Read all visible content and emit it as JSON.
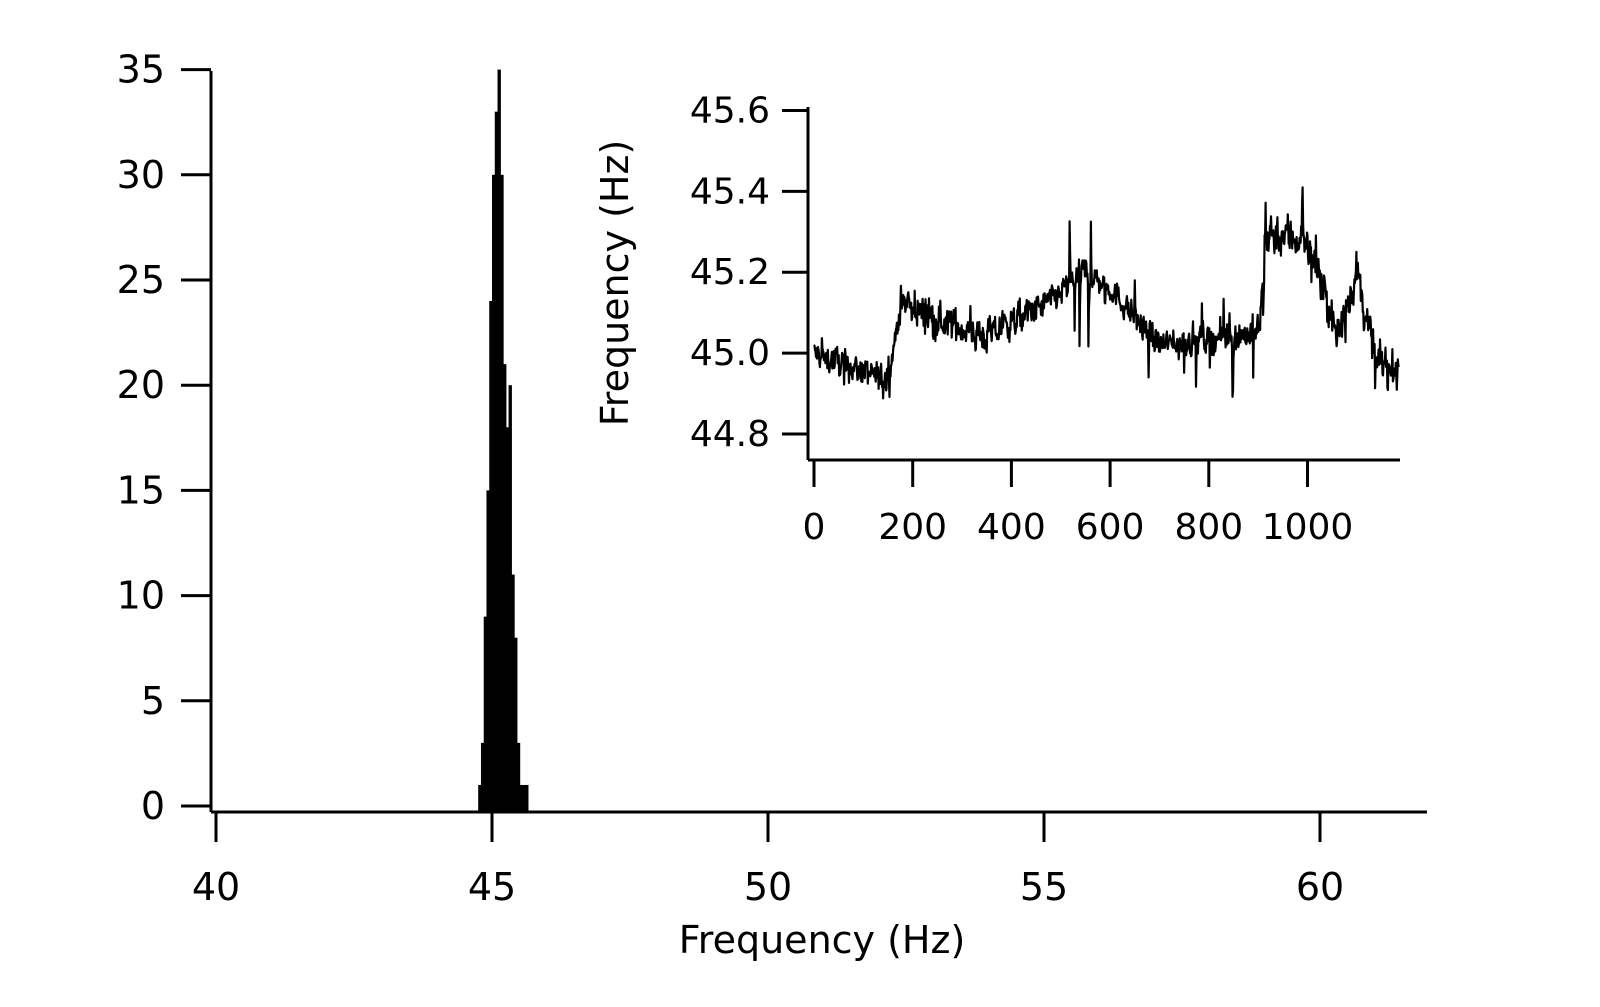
{
  "chart_data": [
    {
      "type": "bar",
      "title": "",
      "xlabel": "Frequency (Hz)",
      "ylabel": "",
      "xlim": [
        40,
        62
      ],
      "ylim": [
        0,
        35
      ],
      "xticks": [
        40,
        45,
        50,
        55,
        60
      ],
      "yticks": [
        0,
        5,
        10,
        15,
        20,
        25,
        30,
        35
      ],
      "grid": false,
      "bar_width": 0.05,
      "color": "#000000",
      "bars": [
        {
          "x": 44.75,
          "y": 1
        },
        {
          "x": 44.8,
          "y": 3
        },
        {
          "x": 44.85,
          "y": 9
        },
        {
          "x": 44.9,
          "y": 15
        },
        {
          "x": 44.95,
          "y": 24
        },
        {
          "x": 45.0,
          "y": 30
        },
        {
          "x": 45.05,
          "y": 33
        },
        {
          "x": 45.1,
          "y": 35
        },
        {
          "x": 45.15,
          "y": 30
        },
        {
          "x": 45.2,
          "y": 21
        },
        {
          "x": 45.25,
          "y": 18
        },
        {
          "x": 45.3,
          "y": 20
        },
        {
          "x": 45.35,
          "y": 11
        },
        {
          "x": 45.4,
          "y": 8
        },
        {
          "x": 45.45,
          "y": 3
        },
        {
          "x": 45.5,
          "y": 1
        },
        {
          "x": 45.55,
          "y": 1
        },
        {
          "x": 45.6,
          "y": 1
        }
      ]
    },
    {
      "type": "line",
      "title": "",
      "xlabel": "",
      "ylabel": "Frequency (Hz)",
      "xlim": [
        -10,
        1185
      ],
      "ylim": [
        44.73,
        45.6
      ],
      "xticks": [
        0,
        200,
        400,
        600,
        800,
        1000
      ],
      "yticks": [
        "44.8",
        "45.0",
        "45.2",
        "45.4",
        "45.6"
      ],
      "grid": false,
      "color": "#000000",
      "segments": [
        {
          "x": 0,
          "y": 45.0,
          "amp": 0.07,
          "spike": 0.06
        },
        {
          "x": 150,
          "y": 44.93,
          "amp": 0.07,
          "spike": 0.06
        },
        {
          "x": 175,
          "y": 45.12,
          "amp": 0.08,
          "spike": 0.07
        },
        {
          "x": 350,
          "y": 45.04,
          "amp": 0.08,
          "spike": 0.08
        },
        {
          "x": 480,
          "y": 45.13,
          "amp": 0.07,
          "spike": 0.1
        },
        {
          "x": 550,
          "y": 45.2,
          "amp": 0.08,
          "spike": 0.28
        },
        {
          "x": 600,
          "y": 45.16,
          "amp": 0.06,
          "spike": 0.08
        },
        {
          "x": 700,
          "y": 45.02,
          "amp": 0.07,
          "spike": 0.12
        },
        {
          "x": 900,
          "y": 45.05,
          "amp": 0.08,
          "spike": 0.15
        },
        {
          "x": 920,
          "y": 45.3,
          "amp": 0.1,
          "spike": 0.2
        },
        {
          "x": 1000,
          "y": 45.28,
          "amp": 0.1,
          "spike": 0.14
        },
        {
          "x": 1060,
          "y": 45.04,
          "amp": 0.08,
          "spike": 0.1
        },
        {
          "x": 1100,
          "y": 45.2,
          "amp": 0.1,
          "spike": 0.14
        },
        {
          "x": 1140,
          "y": 44.98,
          "amp": 0.08,
          "spike": 0.1
        },
        {
          "x": 1185,
          "y": 44.96,
          "amp": 0.08,
          "spike": 0.1
        }
      ]
    }
  ]
}
